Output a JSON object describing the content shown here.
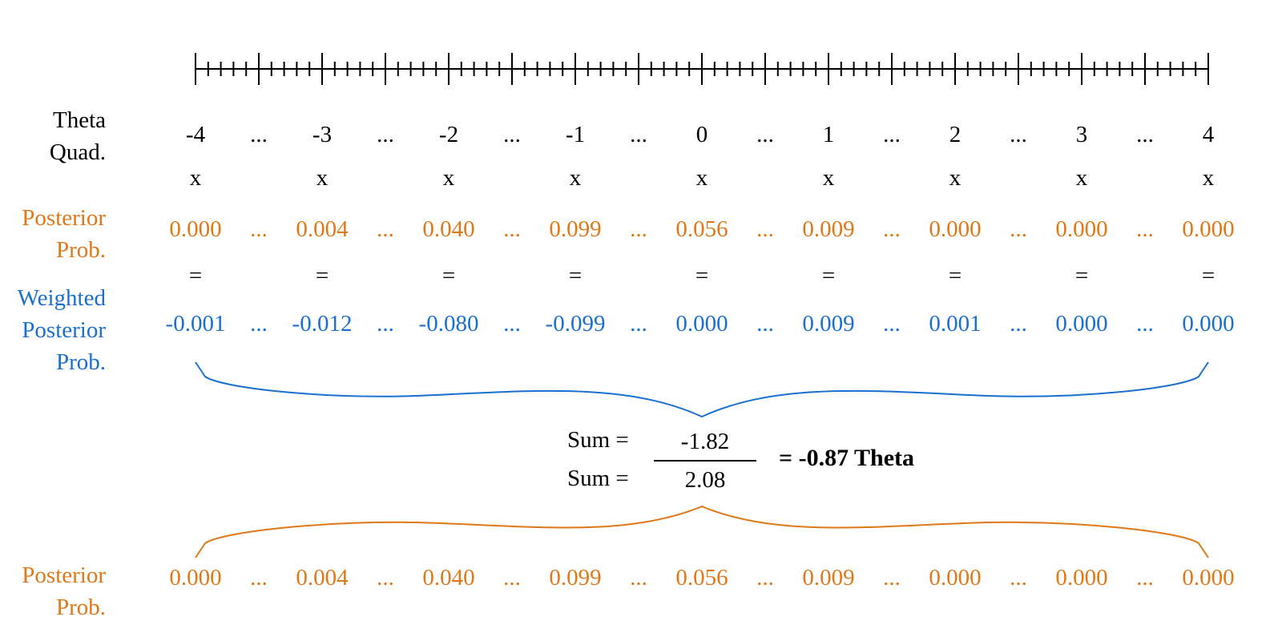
{
  "colors": {
    "text": "#000000",
    "posterior": "#e07818",
    "weighted": "#1a6fd0"
  },
  "labels": {
    "theta_quad": [
      "Theta",
      "Quad."
    ],
    "posterior_prob": [
      "Posterior",
      "Prob."
    ],
    "weighted_posterior_prob": [
      "Weighted",
      "Posterior",
      "Prob."
    ],
    "posterior_prob_bottom": [
      "Posterior",
      "Prob."
    ]
  },
  "ellipsis": "...",
  "times_symbol": "x",
  "equals_symbol": "=",
  "theta_values": [
    "-4",
    "-3",
    "-2",
    "-1",
    "0",
    "1",
    "2",
    "3",
    "4"
  ],
  "posterior_values": [
    "0.000",
    "0.004",
    "0.040",
    "0.099",
    "0.056",
    "0.009",
    "0.000",
    "0.000",
    "0.000"
  ],
  "weighted_values": [
    "-0.001",
    "-0.012",
    "-0.080",
    "-0.099",
    "0.000",
    "0.009",
    "0.001",
    "0.000",
    "0.000"
  ],
  "posterior_values_bottom": [
    "0.000",
    "0.004",
    "0.040",
    "0.099",
    "0.056",
    "0.009",
    "0.000",
    "0.000",
    "0.000"
  ],
  "computation": {
    "sum_label_top": "Sum =",
    "sum_label_bottom": "Sum =",
    "numerator": "-1.82",
    "denominator": "2.08",
    "result": "=  -0.87 Theta"
  },
  "ruler": {
    "major_ticks": 17,
    "minor_per_interval": 4
  }
}
